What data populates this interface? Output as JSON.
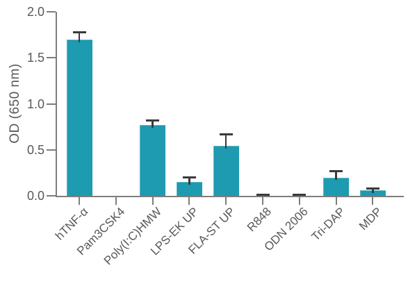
{
  "chart_data": {
    "type": "bar",
    "title": "",
    "xlabel": "",
    "ylabel": "OD (650 nm)",
    "categories": [
      "hTNF-α",
      "Pam3CSK4",
      "Poly(I:C)HMW",
      "LPS-EK UP",
      "FLA-ST UP",
      "R848",
      "ODN 2006",
      "Tri-DAP",
      "MDP"
    ],
    "values": [
      1.7,
      0,
      0.77,
      0.15,
      0.54,
      0,
      0,
      0.2,
      0.06
    ],
    "errors_plus": [
      0.08,
      0,
      0.05,
      0.05,
      0.13,
      0.01,
      0.01,
      0.07,
      0.02
    ],
    "ylim": [
      0,
      2.0
    ],
    "yticks": [
      0.0,
      0.5,
      1.0,
      1.5,
      2.0
    ],
    "ytick_format_decimals": 1,
    "grid": false,
    "legend_position": "none",
    "colors": {
      "bar": "#1e9ab1",
      "error_bar": "#3a3a3a",
      "axis": "#7d7d7d",
      "text": "#57585a",
      "background": "#ffffff"
    }
  }
}
